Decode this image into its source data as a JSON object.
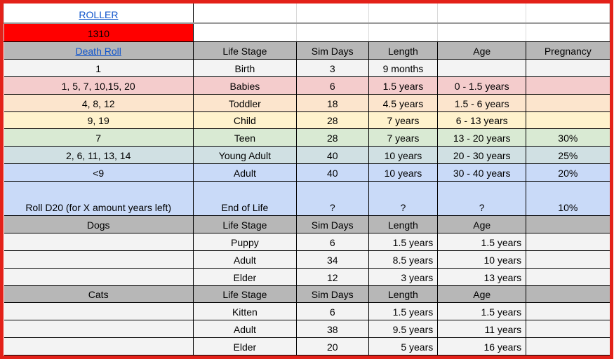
{
  "colors": {
    "outer_border_red": "#e32119",
    "roll_cell_red": "#ff0000",
    "header_gray": "#b7b7b7",
    "row_light_gray": "#f3f3f3",
    "row_pink": "#f4cccc",
    "row_peach": "#fce5cd",
    "row_yellow": "#fff2cc",
    "row_green": "#d9ead3",
    "row_cyan": "#d0e0e3",
    "row_blue": "#c9daf8",
    "link_blue": "#1155cc",
    "grid_black": "#000000",
    "faint_grid_gray": "#d9d9d9"
  },
  "top": {
    "roller_link": "ROLLER",
    "roll_result": "1310"
  },
  "sims": {
    "headers": [
      "Death Roll",
      "Life Stage",
      "Sim Days",
      "Length",
      "Age",
      "Pregnancy"
    ],
    "rows": [
      {
        "death_roll": "1",
        "life_stage": "Birth",
        "sim_days": "3",
        "length": "9 months",
        "age": "",
        "pregnancy": ""
      },
      {
        "death_roll": "1, 5, 7, 10,15, 20",
        "life_stage": "Babies",
        "sim_days": "6",
        "length": "1.5 years",
        "age": "0 - 1.5 years",
        "pregnancy": ""
      },
      {
        "death_roll": "4, 8, 12",
        "life_stage": "Toddler",
        "sim_days": "18",
        "length": "4.5 years",
        "age": "1.5 - 6 years",
        "pregnancy": ""
      },
      {
        "death_roll": "9, 19",
        "life_stage": "Child",
        "sim_days": "28",
        "length": "7 years",
        "age": "6 - 13 years",
        "pregnancy": ""
      },
      {
        "death_roll": "7",
        "life_stage": "Teen",
        "sim_days": "28",
        "length": "7 years",
        "age": "13 - 20 years",
        "pregnancy": "30%"
      },
      {
        "death_roll": "2, 6, 11, 13, 14",
        "life_stage": "Young Adult",
        "sim_days": "40",
        "length": "10 years",
        "age": "20 - 30 years",
        "pregnancy": "25%"
      },
      {
        "death_roll": "<9",
        "life_stage": "Adult",
        "sim_days": "40",
        "length": "10 years",
        "age": "30 - 40 years",
        "pregnancy": "20%"
      },
      {
        "death_roll": "Roll D20 (for X amount years left)",
        "life_stage": "End of Life",
        "sim_days": "?",
        "length": "?",
        "age": "?",
        "pregnancy": "10%"
      }
    ]
  },
  "pets": [
    {
      "title": "Dogs",
      "headers": [
        "Life Stage",
        "Sim Days",
        "Length",
        "Age"
      ],
      "rows": [
        [
          "Puppy",
          "6",
          "1.5 years",
          "1.5 years"
        ],
        [
          "Adult",
          "34",
          "8.5 years",
          "10 years"
        ],
        [
          "Elder",
          "12",
          "3 years",
          "13 years"
        ]
      ]
    },
    {
      "title": "Cats",
      "headers": [
        "Life Stage",
        "Sim Days",
        "Length",
        "Age"
      ],
      "rows": [
        [
          "Kitten",
          "6",
          "1.5 years",
          "1.5 years"
        ],
        [
          "Adult",
          "38",
          "9.5 years",
          "11 years"
        ],
        [
          "Elder",
          "20",
          "5 years",
          "16 years"
        ]
      ]
    }
  ]
}
